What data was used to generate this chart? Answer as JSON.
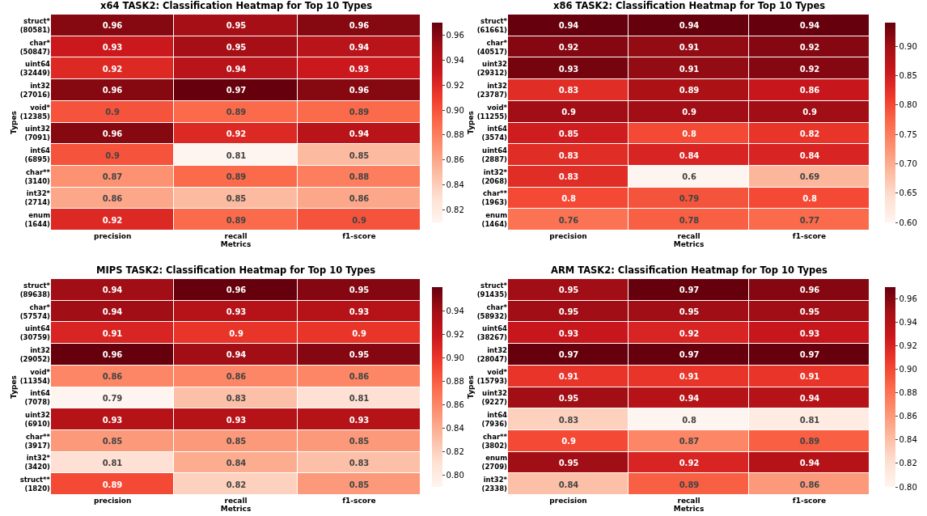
{
  "chart_data": [
    {
      "type": "heatmap",
      "title": "x64 TASK2: Classification Heatmap for Top 10 Types",
      "xlabel": "Metrics",
      "ylabel": "Types",
      "categories": [
        "precision",
        "recall",
        "f1-score"
      ],
      "y_categories": [
        "struct*\n(80581)",
        "char*\n(50847)",
        "uint64\n(32449)",
        "int32\n(27016)",
        "void*\n(12385)",
        "uint32\n(7091)",
        "int64\n(6895)",
        "char**\n(3140)",
        "int32*\n(2714)",
        "enum\n(1644)"
      ],
      "cells": [
        [
          0.96,
          0.95,
          0.96
        ],
        [
          0.93,
          0.95,
          0.94
        ],
        [
          0.92,
          0.94,
          0.93
        ],
        [
          0.96,
          0.97,
          0.96
        ],
        [
          0.9,
          0.89,
          0.89
        ],
        [
          0.96,
          0.92,
          0.94
        ],
        [
          0.9,
          0.81,
          0.85
        ],
        [
          0.87,
          0.89,
          0.88
        ],
        [
          0.86,
          0.85,
          0.86
        ],
        [
          0.92,
          0.89,
          0.9
        ]
      ],
      "clim": [
        0.81,
        0.97
      ],
      "cticks": [
        0.82,
        0.84,
        0.86,
        0.88,
        {
          "value": 0.9,
          "label": "0.90"
        },
        0.92,
        0.94,
        0.96
      ],
      "data_labels": true
    },
    {
      "type": "heatmap",
      "title": "x86 TASK2: Classification Heatmap for Top 10 Types",
      "xlabel": "Metrics",
      "ylabel": "Types",
      "categories": [
        "precision",
        "recall",
        "f1-score"
      ],
      "y_categories": [
        "struct*\n(61661)",
        "char*\n(40517)",
        "uint32\n(29312)",
        "int32\n(23787)",
        "void*\n(11255)",
        "int64\n(3574)",
        "uint64\n(2887)",
        "int32*\n(2068)",
        "char**\n(1963)",
        "enum\n(1464)"
      ],
      "cells": [
        [
          0.94,
          0.94,
          0.94
        ],
        [
          0.92,
          0.91,
          0.92
        ],
        [
          0.93,
          0.91,
          0.92
        ],
        [
          0.83,
          0.89,
          0.86
        ],
        [
          0.9,
          0.9,
          0.9
        ],
        [
          0.85,
          0.8,
          0.82
        ],
        [
          0.83,
          0.84,
          0.84
        ],
        [
          0.83,
          0.6,
          0.69
        ],
        [
          0.8,
          0.79,
          0.8
        ],
        [
          0.76,
          0.78,
          0.77
        ]
      ],
      "clim": [
        0.6,
        0.94
      ],
      "cticks": [
        {
          "value": 0.6,
          "label": "0.60"
        },
        0.65,
        {
          "value": 0.7,
          "label": "0.70"
        },
        0.75,
        {
          "value": 0.8,
          "label": "0.80"
        },
        0.85,
        {
          "value": 0.9,
          "label": "0.90"
        }
      ],
      "data_labels": true
    },
    {
      "type": "heatmap",
      "title": "MIPS TASK2: Classification Heatmap for Top 10 Types",
      "xlabel": "Metrics",
      "ylabel": "Types",
      "categories": [
        "precision",
        "recall",
        "f1-score"
      ],
      "y_categories": [
        "struct*\n(89638)",
        "char*\n(57574)",
        "uint64\n(30759)",
        "int32\n(29052)",
        "void*\n(11354)",
        "int64\n(7078)",
        "uint32\n(6910)",
        "char**\n(3917)",
        "int32*\n(3420)",
        "struct**\n(1820)"
      ],
      "cells": [
        [
          0.94,
          0.96,
          0.95
        ],
        [
          0.94,
          0.93,
          0.93
        ],
        [
          0.91,
          0.9,
          0.9
        ],
        [
          0.96,
          0.94,
          0.95
        ],
        [
          0.86,
          0.86,
          0.86
        ],
        [
          0.79,
          0.83,
          0.81
        ],
        [
          0.93,
          0.93,
          0.93
        ],
        [
          0.85,
          0.85,
          0.85
        ],
        [
          0.81,
          0.84,
          0.83
        ],
        [
          0.89,
          0.82,
          0.85
        ]
      ],
      "clim": [
        0.79,
        0.96
      ],
      "cticks": [
        {
          "value": 0.8,
          "label": "0.80"
        },
        0.82,
        0.84,
        0.86,
        0.88,
        {
          "value": 0.9,
          "label": "0.90"
        },
        0.92,
        0.94
      ],
      "data_labels": true
    },
    {
      "type": "heatmap",
      "title": "ARM TASK2: Classification Heatmap for Top 10 Types",
      "xlabel": "Metrics",
      "ylabel": "Types",
      "categories": [
        "precision",
        "recall",
        "f1-score"
      ],
      "y_categories": [
        "struct*\n(91435)",
        "char*\n(58932)",
        "uint64\n(38267)",
        "int32\n(28047)",
        "void*\n(15793)",
        "uint32\n(9227)",
        "int64\n(7936)",
        "char**\n(3802)",
        "enum\n(2709)",
        "int32*\n(2338)"
      ],
      "cells": [
        [
          0.95,
          0.97,
          0.96
        ],
        [
          0.95,
          0.95,
          0.95
        ],
        [
          0.93,
          0.92,
          0.93
        ],
        [
          0.97,
          0.97,
          0.97
        ],
        [
          0.91,
          0.91,
          0.91
        ],
        [
          0.95,
          0.94,
          0.94
        ],
        [
          0.83,
          0.8,
          0.81
        ],
        [
          0.9,
          0.87,
          0.89
        ],
        [
          0.95,
          0.92,
          0.94
        ],
        [
          0.84,
          0.89,
          0.86
        ]
      ],
      "clim": [
        0.8,
        0.97
      ],
      "cticks": [
        {
          "value": 0.8,
          "label": "0.80"
        },
        0.82,
        0.84,
        0.86,
        0.88,
        {
          "value": 0.9,
          "label": "0.90"
        },
        0.92,
        0.94,
        0.96
      ],
      "data_labels": true
    }
  ]
}
